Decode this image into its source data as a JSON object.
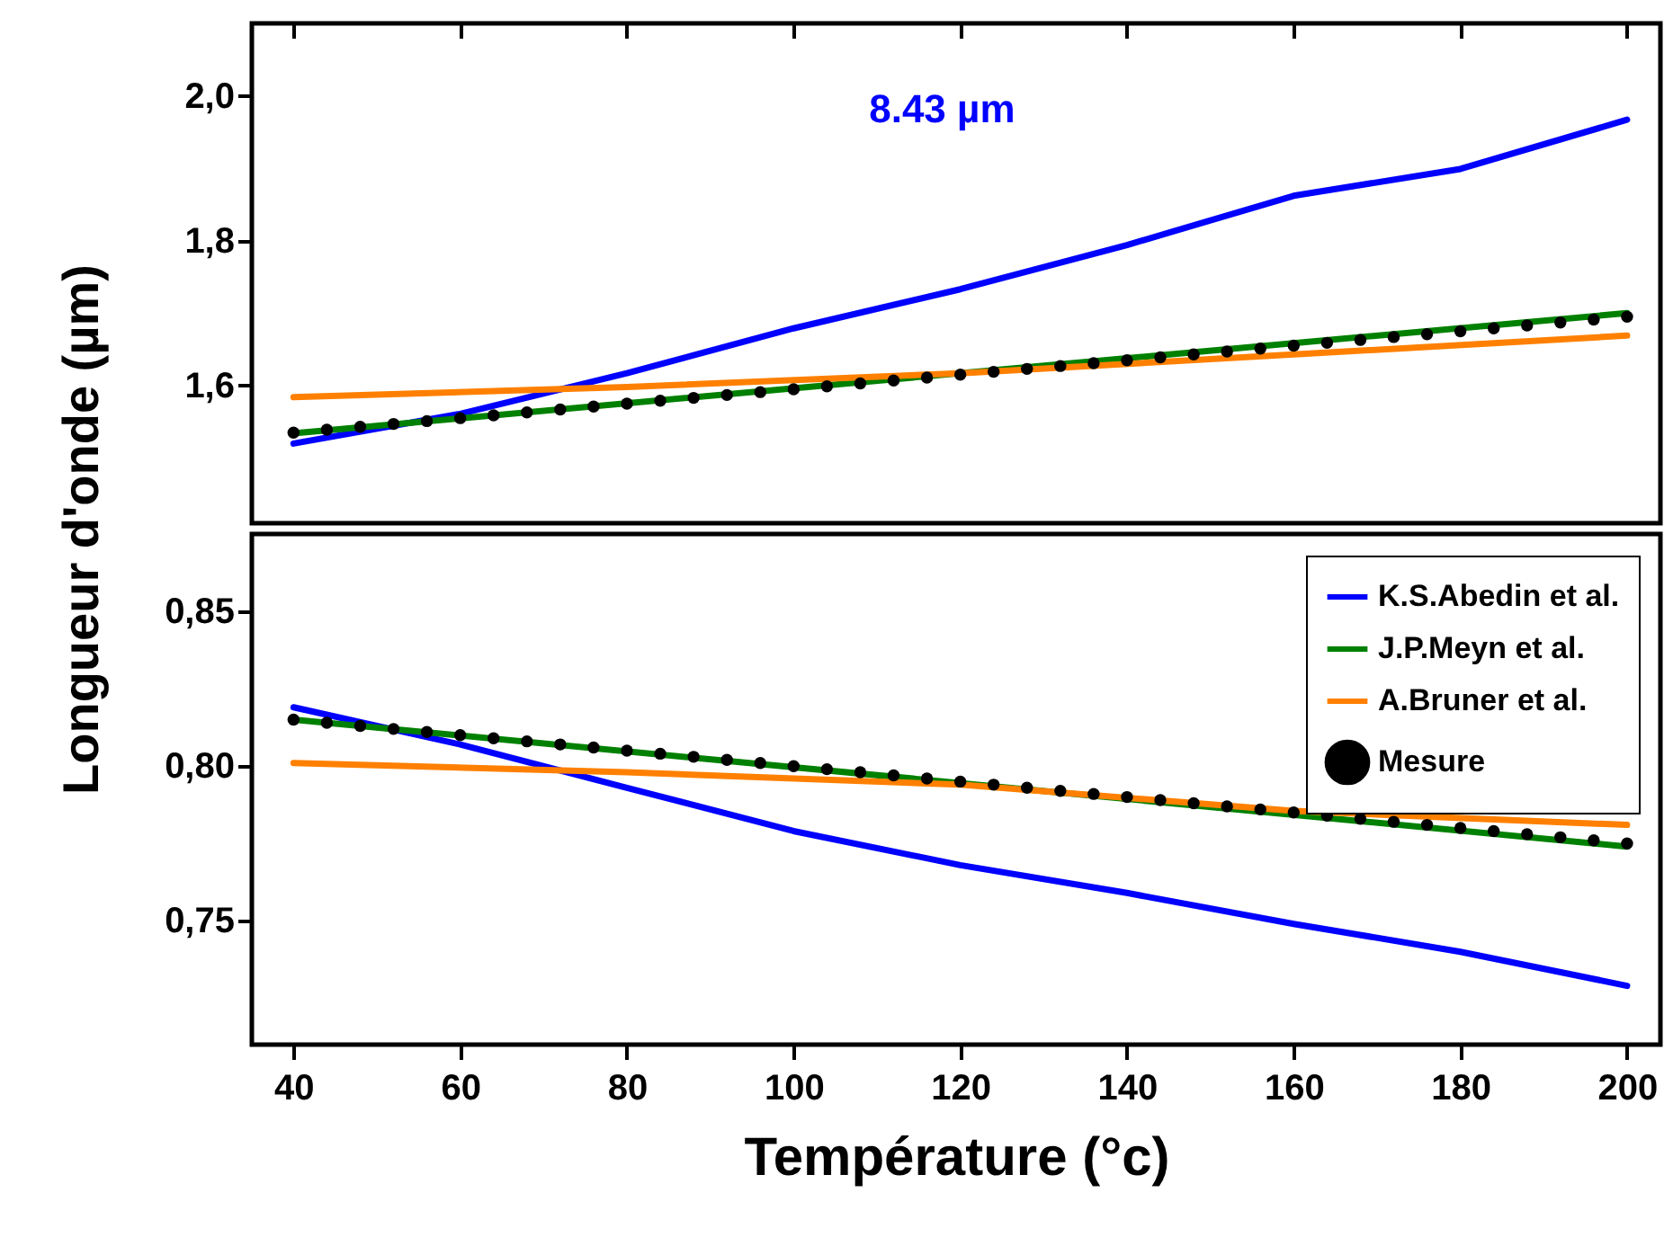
{
  "chart_data": [
    {
      "type": "line",
      "ylabel": "Longueur d'onde (µm)",
      "annotations": [
        "8.43 µm"
      ],
      "xlim": [
        35,
        204
      ],
      "xticks": [
        40,
        60,
        80,
        100,
        120,
        140,
        160,
        180,
        200
      ],
      "ylim": [
        1.41,
        2.1
      ],
      "yticks": [
        {
          "value": 1.6,
          "label": "1,6"
        },
        {
          "value": 1.8,
          "label": "1,8"
        },
        {
          "value": 2.0,
          "label": "2,0"
        }
      ],
      "tick_labels": "y",
      "legend": false,
      "x": [
        40,
        44,
        48,
        52,
        56,
        60,
        64,
        68,
        72,
        76,
        80,
        84,
        88,
        92,
        96,
        100,
        104,
        108,
        112,
        116,
        120,
        124,
        128,
        132,
        136,
        140,
        144,
        148,
        152,
        156,
        160,
        164,
        168,
        172,
        176,
        180,
        184,
        188,
        192,
        196,
        200
      ],
      "series": [
        {
          "type": "line",
          "color": "#0000ff",
          "x": [
            40,
            60,
            80,
            100,
            120,
            140,
            160,
            180,
            200
          ],
          "values": [
            1.52,
            1.561,
            1.617,
            1.679,
            1.733,
            1.794,
            1.862,
            1.899,
            1.967
          ]
        },
        {
          "type": "line",
          "color": "#008000",
          "x": [
            40,
            200
          ],
          "values": [
            1.534,
            1.7
          ]
        },
        {
          "type": "line",
          "color": "#ff8000",
          "x": [
            40,
            80,
            120,
            160,
            200
          ],
          "values": [
            1.584,
            1.598,
            1.617,
            1.643,
            1.669
          ]
        },
        {
          "type": "scatter",
          "marker": "circle",
          "color": "#000000",
          "values": [
            1.535,
            1.539,
            1.543,
            1.547,
            1.551,
            1.555,
            1.559,
            1.563,
            1.567,
            1.571,
            1.575,
            1.579,
            1.583,
            1.587,
            1.591,
            1.595,
            1.599,
            1.603,
            1.607,
            1.611,
            1.615,
            1.619,
            1.623,
            1.627,
            1.631,
            1.635,
            1.639,
            1.643,
            1.647,
            1.651,
            1.655,
            1.659,
            1.663,
            1.667,
            1.671,
            1.675,
            1.679,
            1.683,
            1.687,
            1.691,
            1.695
          ]
        }
      ]
    },
    {
      "type": "line",
      "xlabel": "Température (°c)",
      "xlim": [
        35,
        204
      ],
      "xticks": [
        40,
        60,
        80,
        100,
        120,
        140,
        160,
        180,
        200
      ],
      "ylim": [
        0.71,
        0.875
      ],
      "yticks": [
        {
          "value": 0.75,
          "label": "0,75"
        },
        {
          "value": 0.8,
          "label": "0,80"
        },
        {
          "value": 0.85,
          "label": "0,85"
        }
      ],
      "legend": "top right",
      "x": [
        40,
        44,
        48,
        52,
        56,
        60,
        64,
        68,
        72,
        76,
        80,
        84,
        88,
        92,
        96,
        100,
        104,
        108,
        112,
        116,
        120,
        124,
        128,
        132,
        136,
        140,
        144,
        148,
        152,
        156,
        160,
        164,
        168,
        172,
        176,
        180,
        184,
        188,
        192,
        196,
        200
      ],
      "series": [
        {
          "type": "line",
          "name": "K.S.Abedin et al.",
          "color": "#0000ff",
          "x": [
            40,
            60,
            80,
            100,
            120,
            140,
            160,
            180,
            200
          ],
          "values": [
            0.819,
            0.807,
            0.793,
            0.779,
            0.768,
            0.759,
            0.749,
            0.74,
            0.729
          ]
        },
        {
          "type": "line",
          "name": "J.P.Meyn et al.",
          "color": "#008000",
          "x": [
            40,
            200
          ],
          "values": [
            0.815,
            0.774
          ]
        },
        {
          "type": "line",
          "name": "A.Bruner et al.",
          "color": "#ff8000",
          "x": [
            40,
            80,
            120,
            160,
            200
          ],
          "values": [
            0.801,
            0.798,
            0.794,
            0.7855,
            0.781
          ]
        },
        {
          "type": "scatter",
          "name": "Mesure",
          "marker": "circle",
          "color": "#000000",
          "values": [
            0.815,
            0.814,
            0.813,
            0.812,
            0.811,
            0.81,
            0.809,
            0.808,
            0.807,
            0.806,
            0.805,
            0.804,
            0.803,
            0.802,
            0.801,
            0.8,
            0.799,
            0.798,
            0.797,
            0.796,
            0.795,
            0.794,
            0.793,
            0.792,
            0.791,
            0.79,
            0.789,
            0.788,
            0.787,
            0.786,
            0.785,
            0.784,
            0.783,
            0.782,
            0.781,
            0.78,
            0.779,
            0.778,
            0.777,
            0.776,
            0.775
          ]
        }
      ]
    }
  ]
}
